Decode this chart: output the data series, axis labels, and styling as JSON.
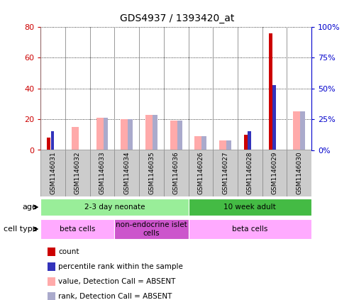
{
  "title": "GDS4937 / 1393420_at",
  "samples": [
    "GSM1146031",
    "GSM1146032",
    "GSM1146033",
    "GSM1146034",
    "GSM1146035",
    "GSM1146036",
    "GSM1146026",
    "GSM1146027",
    "GSM1146028",
    "GSM1146029",
    "GSM1146030"
  ],
  "count_values": [
    8,
    0,
    0,
    0,
    0,
    0,
    0,
    0,
    10,
    76,
    0
  ],
  "rank_values": [
    12,
    0,
    0,
    0,
    0,
    0,
    0,
    0,
    12,
    42,
    0
  ],
  "absent_value_values": [
    0,
    15,
    21,
    20,
    23,
    19,
    9,
    6,
    0,
    0,
    25
  ],
  "absent_rank_values": [
    0,
    0,
    21,
    20,
    23,
    19,
    9,
    6,
    0,
    0,
    25
  ],
  "ylim_left": [
    0,
    80
  ],
  "ylim_right": [
    0,
    100
  ],
  "left_ticks": [
    0,
    20,
    40,
    60,
    80
  ],
  "right_ticks": [
    0,
    25,
    50,
    75,
    100
  ],
  "left_tick_labels": [
    "0",
    "20",
    "40",
    "60",
    "80"
  ],
  "right_tick_labels": [
    "0%",
    "25%",
    "50%",
    "75%",
    "100%"
  ],
  "left_color": "#cc0000",
  "right_color": "#0000cc",
  "color_count": "#cc0000",
  "color_rank": "#3333bb",
  "color_absent_value": "#ffaaaa",
  "color_absent_rank": "#aaaacc",
  "age_groups": [
    {
      "label": "2-3 day neonate",
      "start": 0,
      "end": 6,
      "color": "#99ee99"
    },
    {
      "label": "10 week adult",
      "start": 6,
      "end": 11,
      "color": "#44bb44"
    }
  ],
  "cell_type_groups": [
    {
      "label": "beta cells",
      "start": 0,
      "end": 3,
      "color": "#ffaaff"
    },
    {
      "label": "non-endocrine islet\ncells",
      "start": 3,
      "end": 6,
      "color": "#cc55cc"
    },
    {
      "label": "beta cells",
      "start": 6,
      "end": 11,
      "color": "#ffaaff"
    }
  ],
  "legend_items": [
    {
      "label": "count",
      "color": "#cc0000"
    },
    {
      "label": "percentile rank within the sample",
      "color": "#3333bb"
    },
    {
      "label": "value, Detection Call = ABSENT",
      "color": "#ffaaaa"
    },
    {
      "label": "rank, Detection Call = ABSENT",
      "color": "#aaaacc"
    }
  ],
  "background_color": "#ffffff",
  "tick_area_color": "#cccccc",
  "separator_color": "#888888",
  "n_samples": 11
}
